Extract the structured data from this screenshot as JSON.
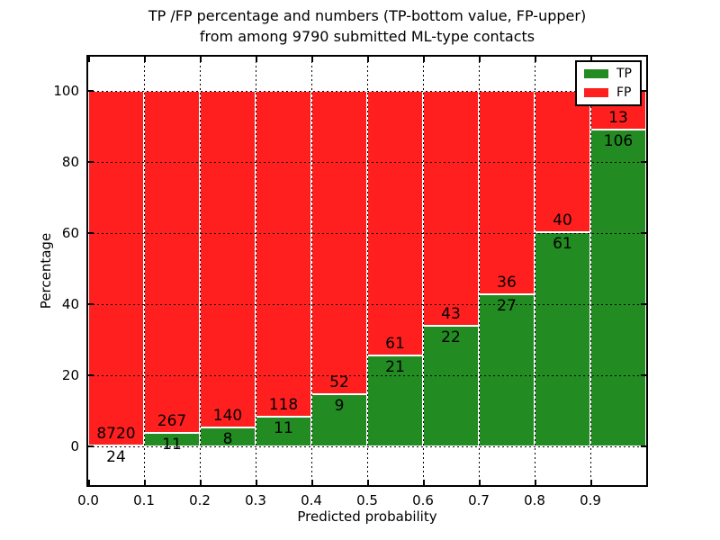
{
  "titles": {
    "line1": "TP /FP percentage and numbers (TP-bottom value, FP-upper)",
    "line2": "from among 9790 submitted ML-type contacts"
  },
  "chart_data": {
    "type": "bar",
    "variant": "stacked-percentage",
    "title": "TP /FP percentage and numbers (TP-bottom value, FP-upper)\nfrom among 9790 submitted ML-type contacts",
    "xlabel": "Predicted probability",
    "ylabel": "Percentage",
    "bin_width": 0.1,
    "categories": [
      "0.0-0.1",
      "0.1-0.2",
      "0.2-0.3",
      "0.3-0.4",
      "0.4-0.5",
      "0.5-0.6",
      "0.6-0.7",
      "0.7-0.8",
      "0.8-0.9",
      "0.9-1.0"
    ],
    "x_tick_labels": [
      "0.0",
      "0.1",
      "0.2",
      "0.3",
      "0.4",
      "0.5",
      "0.6",
      "0.7",
      "0.8",
      "0.9"
    ],
    "y_tick_values": [
      0,
      20,
      40,
      60,
      80,
      100
    ],
    "xlim": [
      0.0,
      1.0
    ],
    "ylim": [
      -10.8,
      109.6
    ],
    "grid": {
      "style": "dotted",
      "color": "#000000",
      "axes": "both"
    },
    "bar_edge_color": "#ffffff",
    "legend": {
      "position": "upper-right",
      "entries": [
        {
          "label": "TP",
          "color": "#228b22"
        },
        {
          "label": "FP",
          "color": "#ff1f1f"
        }
      ]
    },
    "series": [
      {
        "name": "TP",
        "stack_role": "bottom",
        "color": "#228b22",
        "counts": [
          24,
          11,
          8,
          11,
          9,
          21,
          22,
          27,
          61,
          106
        ]
      },
      {
        "name": "FP",
        "stack_role": "top",
        "color": "#ff1f1f",
        "counts": [
          8720,
          267,
          140,
          118,
          52,
          61,
          43,
          36,
          40,
          13
        ]
      }
    ],
    "tp_percent_of_bin": [
      0.27,
      3.96,
      5.41,
      8.53,
      14.75,
      25.61,
      33.85,
      42.86,
      60.4,
      89.08
    ],
    "total_submitted": 9790
  }
}
